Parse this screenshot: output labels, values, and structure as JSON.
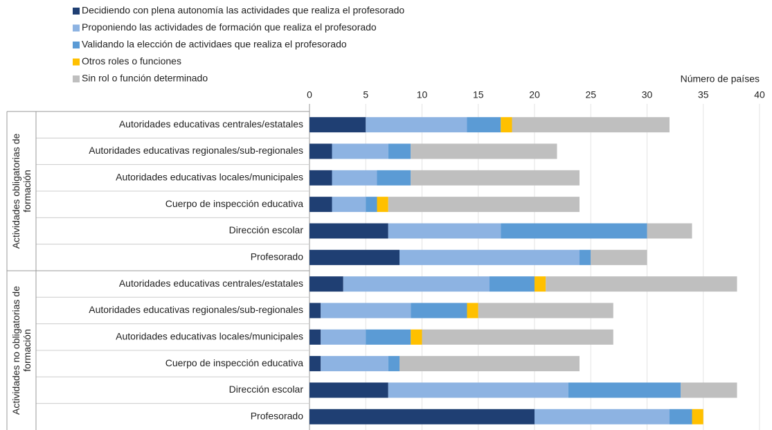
{
  "chart_data": {
    "type": "stacked-bar-horizontal",
    "x_label": "Número de países",
    "groups": [
      {
        "name": "Actividades obligatorias de formación",
        "categories": [
          "Autoridades educativas centrales/estatales",
          "Autoridades educativas regionales/sub-regionales",
          "Autoridades educativas locales/municipales",
          "Cuerpo de inspección educativa",
          "Dirección escolar",
          "Profesorado"
        ]
      },
      {
        "name": "Actividades no obligatorias de formación",
        "categories": [
          "Autoridades educativas centrales/estatales",
          "Autoridades educativas regionales/sub-regionales",
          "Autoridades educativas locales/municipales",
          "Cuerpo de inspección educativa",
          "Dirección escolar",
          "Profesorado"
        ]
      }
    ],
    "series": [
      {
        "name": "Decidiendo con plena autonomía las actividades que realiza el profesorado",
        "color": "#1f3f73",
        "values": [
          5,
          2,
          2,
          2,
          7,
          8,
          3,
          1,
          1,
          1,
          7,
          20
        ]
      },
      {
        "name": "Proponiendo las actividades de formación que realiza el profesorado",
        "color": "#8db3e2",
        "values": [
          9,
          5,
          4,
          3,
          10,
          16,
          13,
          8,
          4,
          6,
          16,
          12
        ]
      },
      {
        "name": "Validando la elección de actividaes que realiza el profesorado",
        "color": "#5b9bd5",
        "values": [
          3,
          2,
          3,
          1,
          13,
          1,
          4,
          5,
          4,
          1,
          10,
          2
        ]
      },
      {
        "name": "Otros roles o funciones",
        "color": "#ffc000",
        "values": [
          1,
          0,
          0,
          1,
          0,
          0,
          1,
          1,
          1,
          0,
          0,
          1
        ]
      },
      {
        "name": "Sin rol o función determinado",
        "color": "#bfbfbf",
        "values": [
          14,
          13,
          15,
          17,
          4,
          5,
          17,
          12,
          17,
          16,
          5,
          0
        ]
      }
    ],
    "xlim": [
      0,
      40
    ],
    "xticks": [
      0,
      5,
      10,
      15,
      20,
      25,
      30,
      35,
      40
    ],
    "grid": true,
    "legend": "top-left"
  }
}
